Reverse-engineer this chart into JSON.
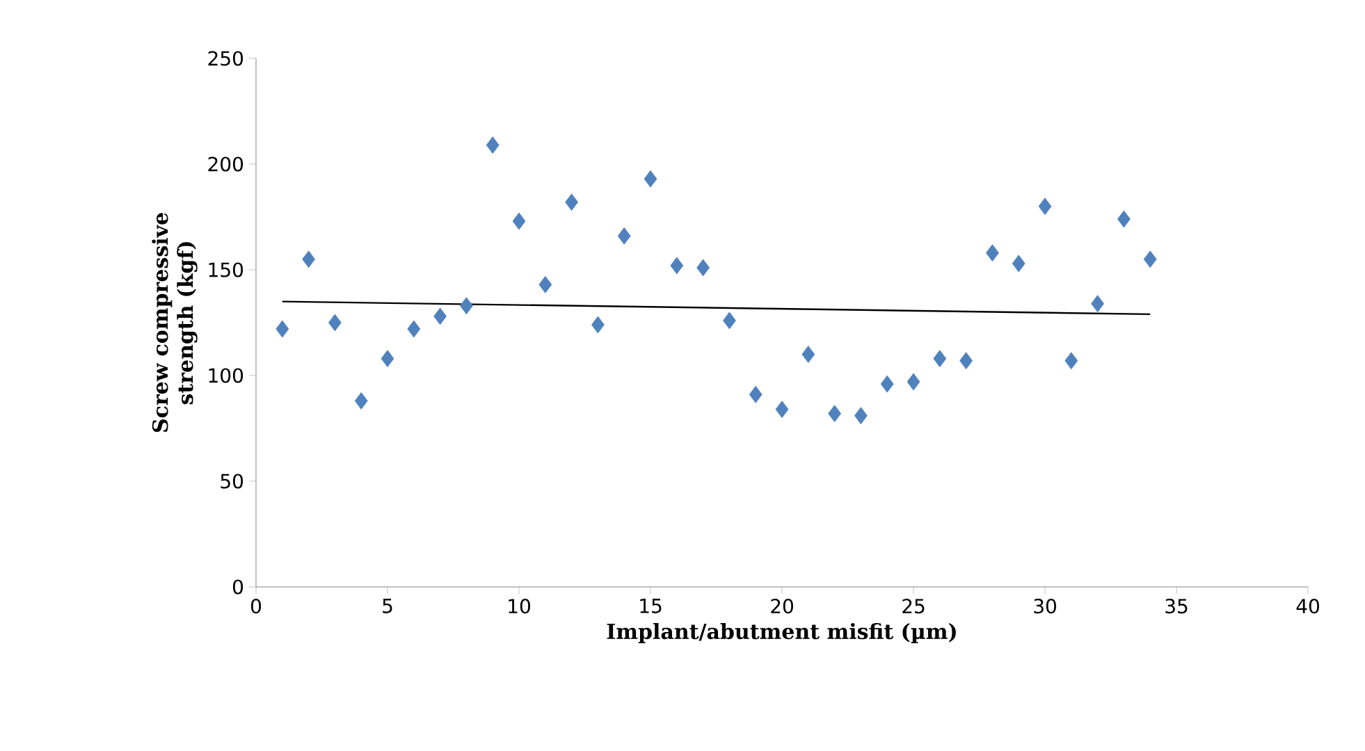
{
  "chart_data": {
    "type": "scatter",
    "xlabel": "Implant/abutment misfit (µm)",
    "ylabel": "Screw compressive strength (kgf)",
    "xlim": [
      0,
      40
    ],
    "ylim": [
      0,
      250
    ],
    "xticks": [
      0,
      5,
      10,
      15,
      20,
      25,
      30,
      35,
      40
    ],
    "yticks": [
      0,
      50,
      100,
      150,
      200,
      250
    ],
    "grid": false,
    "series": [
      {
        "marker": "diamond",
        "color": "#4f81bd",
        "x": [
          1,
          2,
          3,
          4,
          5,
          6,
          7,
          8,
          9,
          10,
          11,
          12,
          13,
          14,
          15,
          16,
          17,
          18,
          19,
          20,
          21,
          22,
          23,
          24,
          25,
          26,
          27,
          28,
          29,
          30,
          31,
          32,
          33,
          34
        ],
        "values": [
          122,
          155,
          125,
          88,
          108,
          122,
          128,
          133,
          209,
          173,
          143,
          182,
          124,
          166,
          193,
          152,
          151,
          126,
          91,
          84,
          110,
          82,
          81,
          96,
          97,
          108,
          107,
          158,
          153,
          180,
          107,
          134,
          174,
          155
        ]
      },
      {
        "type": "line",
        "color": "#000000",
        "x": [
          1,
          34
        ],
        "values": [
          135,
          129
        ]
      }
    ]
  }
}
